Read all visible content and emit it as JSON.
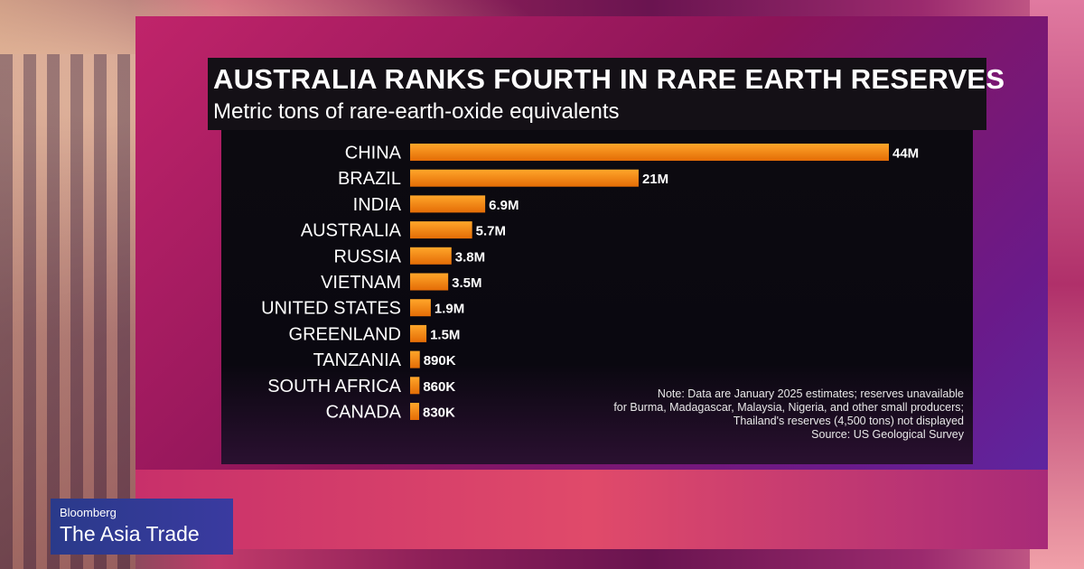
{
  "chart_data": {
    "type": "bar",
    "orientation": "horizontal",
    "title": "AUSTRALIA RANKS FOURTH IN RARE EARTH RESERVES",
    "subtitle": "Metric tons of rare-earth-oxide equivalents",
    "categories": [
      "CHINA",
      "BRAZIL",
      "INDIA",
      "AUSTRALIA",
      "RUSSIA",
      "VIETNAM",
      "UNITED STATES",
      "GREENLAND",
      "TANZANIA",
      "SOUTH AFRICA",
      "CANADA"
    ],
    "values": [
      44000000,
      21000000,
      6900000,
      5700000,
      3800000,
      3500000,
      1900000,
      1500000,
      890000,
      860000,
      830000
    ],
    "value_labels": [
      "44M",
      "21M",
      "6.9M",
      "5.7M",
      "3.8M",
      "3.5M",
      "1.9M",
      "1.5M",
      "890K",
      "860K",
      "830K"
    ],
    "xlim": [
      0,
      44000000
    ],
    "bar_color": "#f08a10",
    "grid": false,
    "note_lines": [
      "Note: Data are January 2025 estimates; reserves unavailable",
      "for Burma, Madagascar, Malaysia, Nigeria, and other small producers;",
      "Thailand's reserves (4,500 tons) not displayed",
      "Source: US Geological Survey"
    ]
  },
  "branding": {
    "network": "Bloomberg",
    "show": "The Asia Trade"
  },
  "colors": {
    "panel_bg": "#0c0a10",
    "bar_top": "#ff9a1c",
    "bar_bottom": "#e06c08"
  }
}
